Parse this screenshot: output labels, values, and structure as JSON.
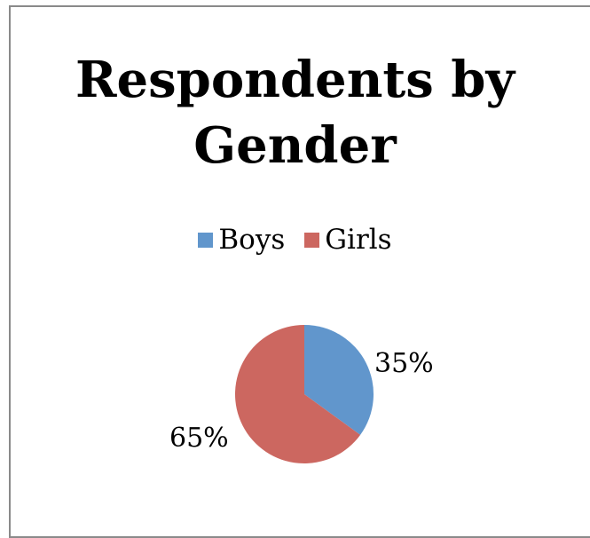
{
  "chart_data": {
    "type": "pie",
    "title_lines": [
      "Respondents by",
      "Gender"
    ],
    "categories": [
      "Boys",
      "Girls"
    ],
    "values": [
      35,
      65
    ],
    "data_labels": [
      "35%",
      "65%"
    ],
    "colors": [
      "#6196cc",
      "#cc6760"
    ],
    "legend_position": "top"
  }
}
